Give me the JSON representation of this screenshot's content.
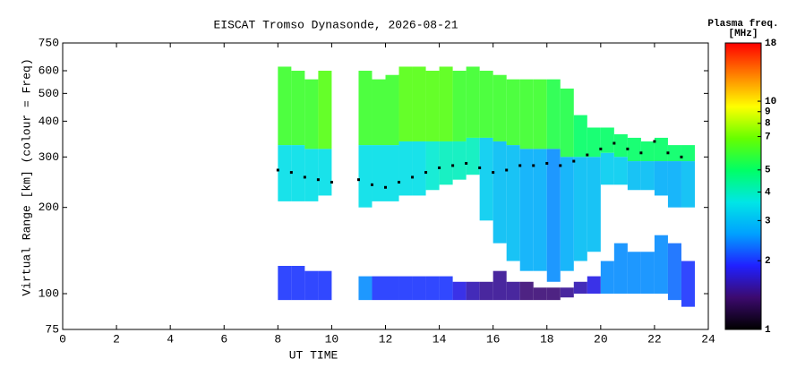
{
  "chart_data": {
    "type": "ionogram",
    "title": "EISCAT Tromso Dynasonde, 2026-08-21",
    "x_label": "UT TIME",
    "y_label": "Virtual Range [km] (colour = Freq)",
    "colorbar_title": [
      "Plasma freq.",
      "[MHz]"
    ],
    "xlim": [
      0,
      24
    ],
    "xticks": [
      0,
      2,
      4,
      6,
      8,
      10,
      12,
      14,
      16,
      18,
      20,
      22,
      24
    ],
    "ylim": [
      75,
      750
    ],
    "yticks": [
      75,
      100,
      200,
      300,
      400,
      500,
      600,
      750
    ],
    "y_log": true,
    "clim": [
      1,
      18
    ],
    "cticks": [
      1,
      2,
      3,
      4,
      5,
      7,
      8,
      9,
      10,
      18
    ],
    "c_log": true,
    "colormap": [
      "#000000",
      "#3c0a6e",
      "#2020ff",
      "#00a0ff",
      "#00e6e6",
      "#00ff66",
      "#66ff00",
      "#ffff00",
      "#ff8000",
      "#ff0000"
    ],
    "trace_color": "#000000",
    "echoes": {
      "x": [
        8,
        8,
        8,
        8.5,
        8.5,
        8.5,
        9,
        9,
        9,
        9.5,
        9.5,
        9.5,
        11,
        11,
        11,
        11.5,
        11.5,
        11.5,
        12,
        12,
        12,
        12.5,
        12.5,
        12.5,
        13,
        13,
        13,
        13.5,
        13.5,
        13.5,
        14,
        14,
        14,
        14.5,
        14.5,
        14.5,
        15,
        15,
        15,
        15.5,
        15.5,
        15.5,
        16,
        16,
        16,
        16.5,
        16.5,
        16.5,
        17,
        17,
        17,
        17.5,
        17.5,
        17.5,
        18,
        18,
        18,
        18.5,
        18.5,
        18.5,
        19,
        19,
        19,
        19.5,
        19.5,
        19.5,
        20,
        20,
        20,
        20.5,
        20.5,
        20.5,
        21,
        21,
        21,
        21.5,
        21.5,
        21.5,
        22,
        22,
        22,
        22.5,
        22.5,
        22.5,
        23,
        23,
        23
      ],
      "h_low": [
        330,
        210,
        95,
        330,
        210,
        95,
        320,
        210,
        95,
        320,
        220,
        95,
        330,
        200,
        95,
        330,
        210,
        95,
        330,
        210,
        95,
        340,
        220,
        95,
        340,
        220,
        95,
        340,
        230,
        95,
        340,
        240,
        95,
        340,
        250,
        95,
        350,
        260,
        95,
        350,
        180,
        95,
        340,
        150,
        95,
        330,
        130,
        95,
        320,
        120,
        95,
        320,
        120,
        95,
        320,
        110,
        95,
        300,
        120,
        97,
        300,
        130,
        100,
        300,
        140,
        100,
        310,
        240,
        100,
        300,
        240,
        100,
        290,
        230,
        100,
        290,
        230,
        100,
        290,
        220,
        100,
        290,
        200,
        95,
        290,
        200,
        90
      ],
      "h_high": [
        620,
        330,
        125,
        600,
        330,
        125,
        560,
        320,
        120,
        600,
        320,
        120,
        600,
        330,
        115,
        560,
        330,
        115,
        580,
        330,
        115,
        620,
        340,
        115,
        620,
        340,
        115,
        600,
        340,
        115,
        620,
        340,
        115,
        600,
        340,
        110,
        620,
        350,
        110,
        600,
        350,
        110,
        580,
        340,
        120,
        560,
        330,
        110,
        560,
        320,
        110,
        560,
        320,
        105,
        560,
        320,
        105,
        520,
        300,
        105,
        420,
        300,
        110,
        380,
        300,
        115,
        380,
        310,
        130,
        360,
        300,
        150,
        350,
        290,
        140,
        340,
        290,
        140,
        350,
        290,
        160,
        330,
        290,
        150,
        330,
        290,
        130
      ],
      "freq": [
        6,
        3.5,
        2,
        6,
        3.5,
        2,
        6,
        3.5,
        2,
        6.5,
        3.5,
        2,
        6,
        3.5,
        2.5,
        6,
        3.5,
        2,
        6,
        3.5,
        2,
        6.5,
        3.5,
        2,
        6.5,
        3.5,
        2,
        6.5,
        3.8,
        2,
        6.5,
        4,
        2,
        6,
        4,
        1.8,
        6,
        4,
        1.6,
        6,
        3.2,
        1.5,
        6,
        3,
        1.5,
        6,
        3,
        1.5,
        6,
        2.8,
        1.4,
        6,
        2.8,
        1.4,
        5.5,
        2.5,
        1.4,
        5.5,
        2.8,
        1.5,
        5,
        3,
        1.6,
        5,
        3,
        1.8,
        5,
        3.2,
        2.5,
        5,
        3.2,
        2.5,
        5,
        3,
        2.5,
        5,
        3,
        2.5,
        5,
        2.8,
        2.5,
        5,
        2.8,
        2.3,
        5,
        3,
        2
      ]
    },
    "trace": {
      "x": [
        8,
        8.5,
        9,
        9.5,
        10,
        11,
        11.5,
        12,
        12.5,
        13,
        13.5,
        14,
        14.5,
        15,
        15.5,
        16,
        16.5,
        17,
        17.5,
        18,
        18.5,
        19,
        19.5,
        20,
        20.5,
        21,
        21.5,
        22,
        22.5,
        23
      ],
      "y": [
        270,
        265,
        255,
        250,
        245,
        250,
        240,
        235,
        245,
        255,
        265,
        275,
        280,
        285,
        275,
        265,
        270,
        280,
        280,
        285,
        280,
        290,
        305,
        320,
        335,
        320,
        310,
        340,
        310,
        300
      ]
    }
  }
}
